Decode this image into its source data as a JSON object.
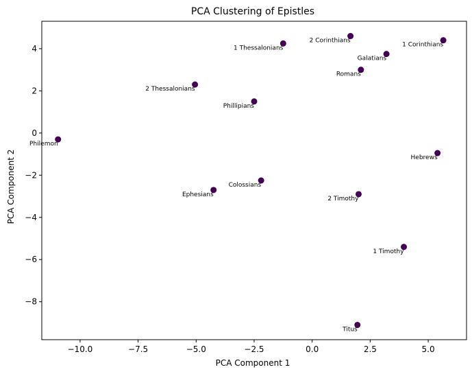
{
  "chart_data": {
    "type": "scatter",
    "title": "PCA Clustering of Epistles",
    "xlabel": "PCA Component 1",
    "ylabel": "PCA Component 2",
    "xlim": [
      -11.65,
      6.65
    ],
    "ylim": [
      -9.8,
      5.3
    ],
    "xticks": [
      -10.0,
      -7.5,
      -5.0,
      -2.5,
      0.0,
      2.5,
      5.0
    ],
    "xtick_labels": [
      "−10.0",
      "−7.5",
      "−5.0",
      "−2.5",
      "0.0",
      "2.5",
      "5.0"
    ],
    "yticks": [
      -8,
      -6,
      -4,
      -2,
      0,
      2,
      4
    ],
    "ytick_labels": [
      "−8",
      "−6",
      "−4",
      "−2",
      "0",
      "2",
      "4"
    ],
    "grid": false,
    "marker_color": "#440154",
    "points": [
      {
        "label": "Philemon",
        "x": -10.95,
        "y": -0.3
      },
      {
        "label": "2 Thessalonians",
        "x": -5.05,
        "y": 2.3
      },
      {
        "label": "Ephesians",
        "x": -4.25,
        "y": -2.7
      },
      {
        "label": "Phillipians",
        "x": -2.5,
        "y": 1.5
      },
      {
        "label": "Colossians",
        "x": -2.2,
        "y": -2.25
      },
      {
        "label": "1 Thessalonians",
        "x": -1.25,
        "y": 4.25
      },
      {
        "label": "2 Corinthians",
        "x": 1.65,
        "y": 4.6
      },
      {
        "label": "Titus",
        "x": 1.95,
        "y": -9.1
      },
      {
        "label": "2 Timothy",
        "x": 2.0,
        "y": -2.9
      },
      {
        "label": "Romans",
        "x": 2.1,
        "y": 3.0
      },
      {
        "label": "Galatians",
        "x": 3.2,
        "y": 3.75
      },
      {
        "label": "1 Timothy",
        "x": 3.95,
        "y": -5.4
      },
      {
        "label": "Hebrews",
        "x": 5.4,
        "y": -0.95
      },
      {
        "label": "1 Corinthians",
        "x": 5.65,
        "y": 4.4
      }
    ]
  }
}
